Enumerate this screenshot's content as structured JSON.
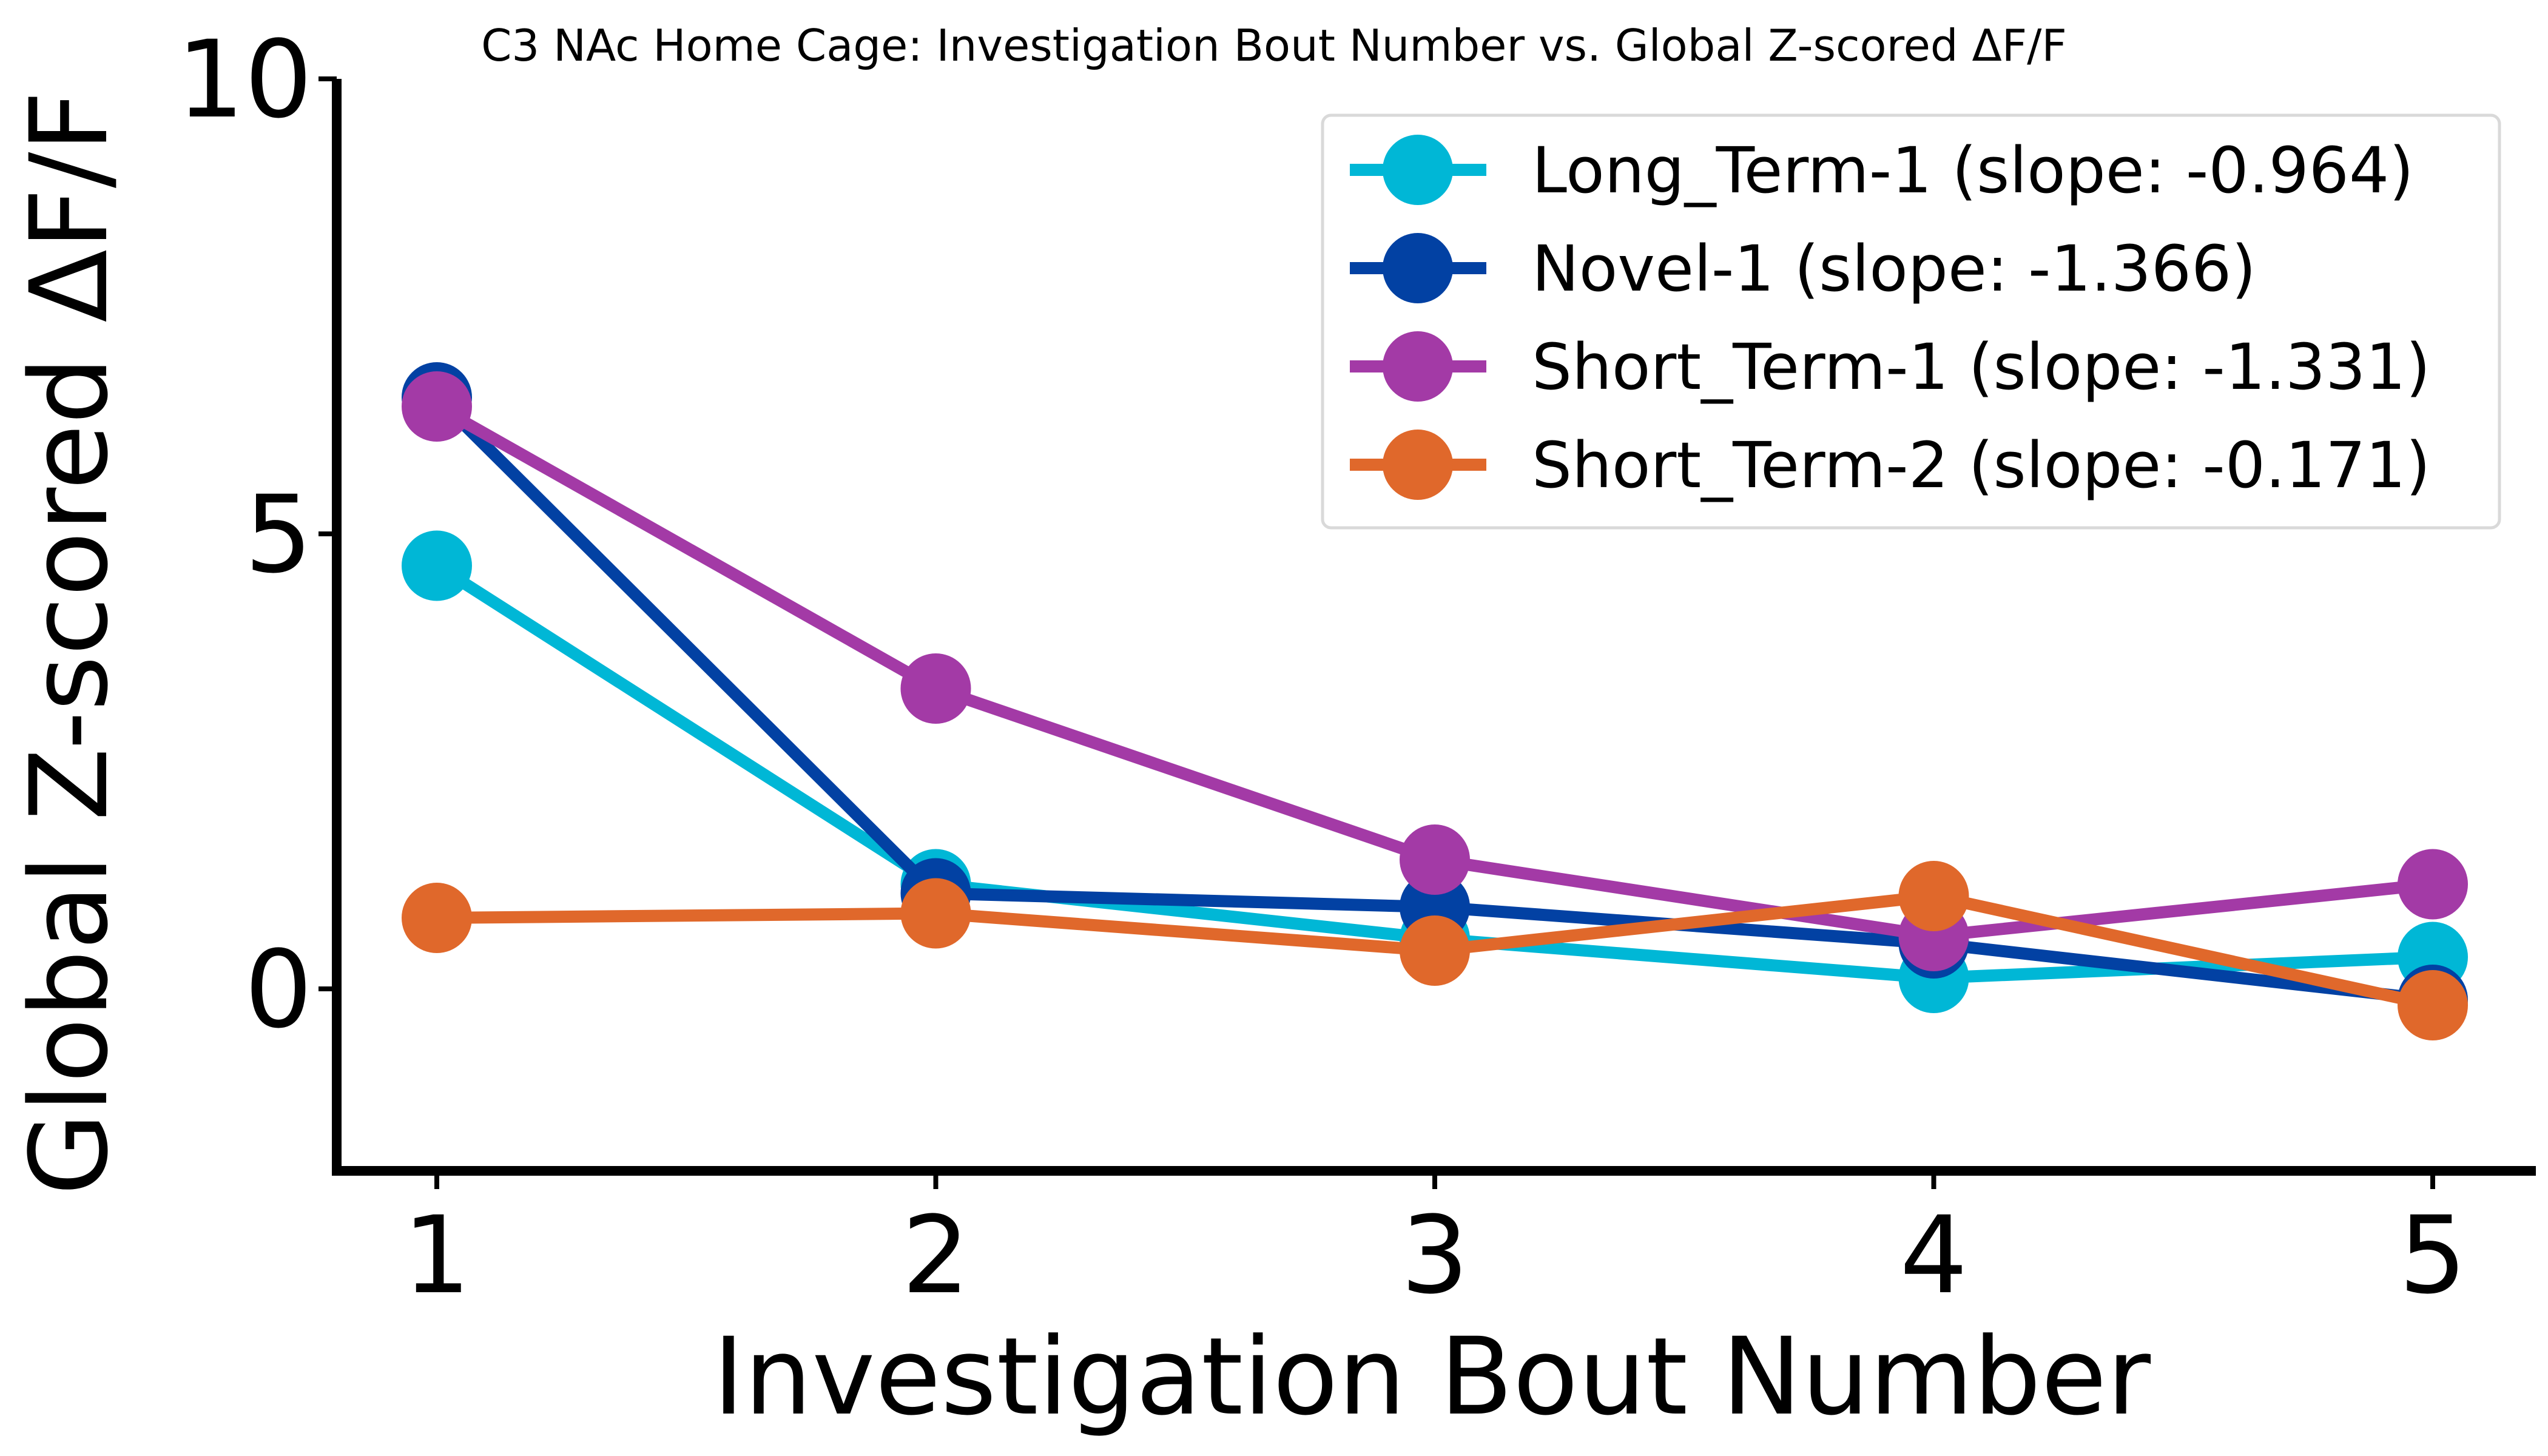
{
  "chart_data": {
    "type": "line",
    "title": "C3 NAc Home Cage: Investigation Bout Number vs. Global Z-scored ΔF/F",
    "xlabel": "Investigation Bout Number",
    "ylabel": "Global Z-scored ΔF/F",
    "x": [
      1,
      2,
      3,
      4,
      5
    ],
    "xlim": [
      0.8,
      5.2
    ],
    "ylim": [
      -2.0,
      10.0
    ],
    "xticks": [
      "1",
      "2",
      "3",
      "4",
      "5"
    ],
    "yticks": [
      {
        "value": 0,
        "label": "0"
      },
      {
        "value": 5,
        "label": "5"
      },
      {
        "value": 10,
        "label": "10"
      }
    ],
    "grid": false,
    "legend_position": "top-right",
    "series": [
      {
        "name": "Long_Term-1 (slope: -0.964)",
        "color": "#00B7D6",
        "values": [
          4.65,
          1.15,
          0.55,
          0.12,
          0.35
        ]
      },
      {
        "name": "Novel-1 (slope: -1.366)",
        "color": "#0241A3",
        "values": [
          6.5,
          1.05,
          0.9,
          0.5,
          -0.12
        ]
      },
      {
        "name": "Short_Term-1 (slope: -1.331)",
        "color": "#A33AA6",
        "values": [
          6.4,
          3.3,
          1.42,
          0.58,
          1.15
        ]
      },
      {
        "name": "Short_Term-2 (slope: -0.171)",
        "color": "#E0682B",
        "values": [
          0.78,
          0.83,
          0.42,
          1.02,
          -0.18
        ]
      }
    ]
  }
}
